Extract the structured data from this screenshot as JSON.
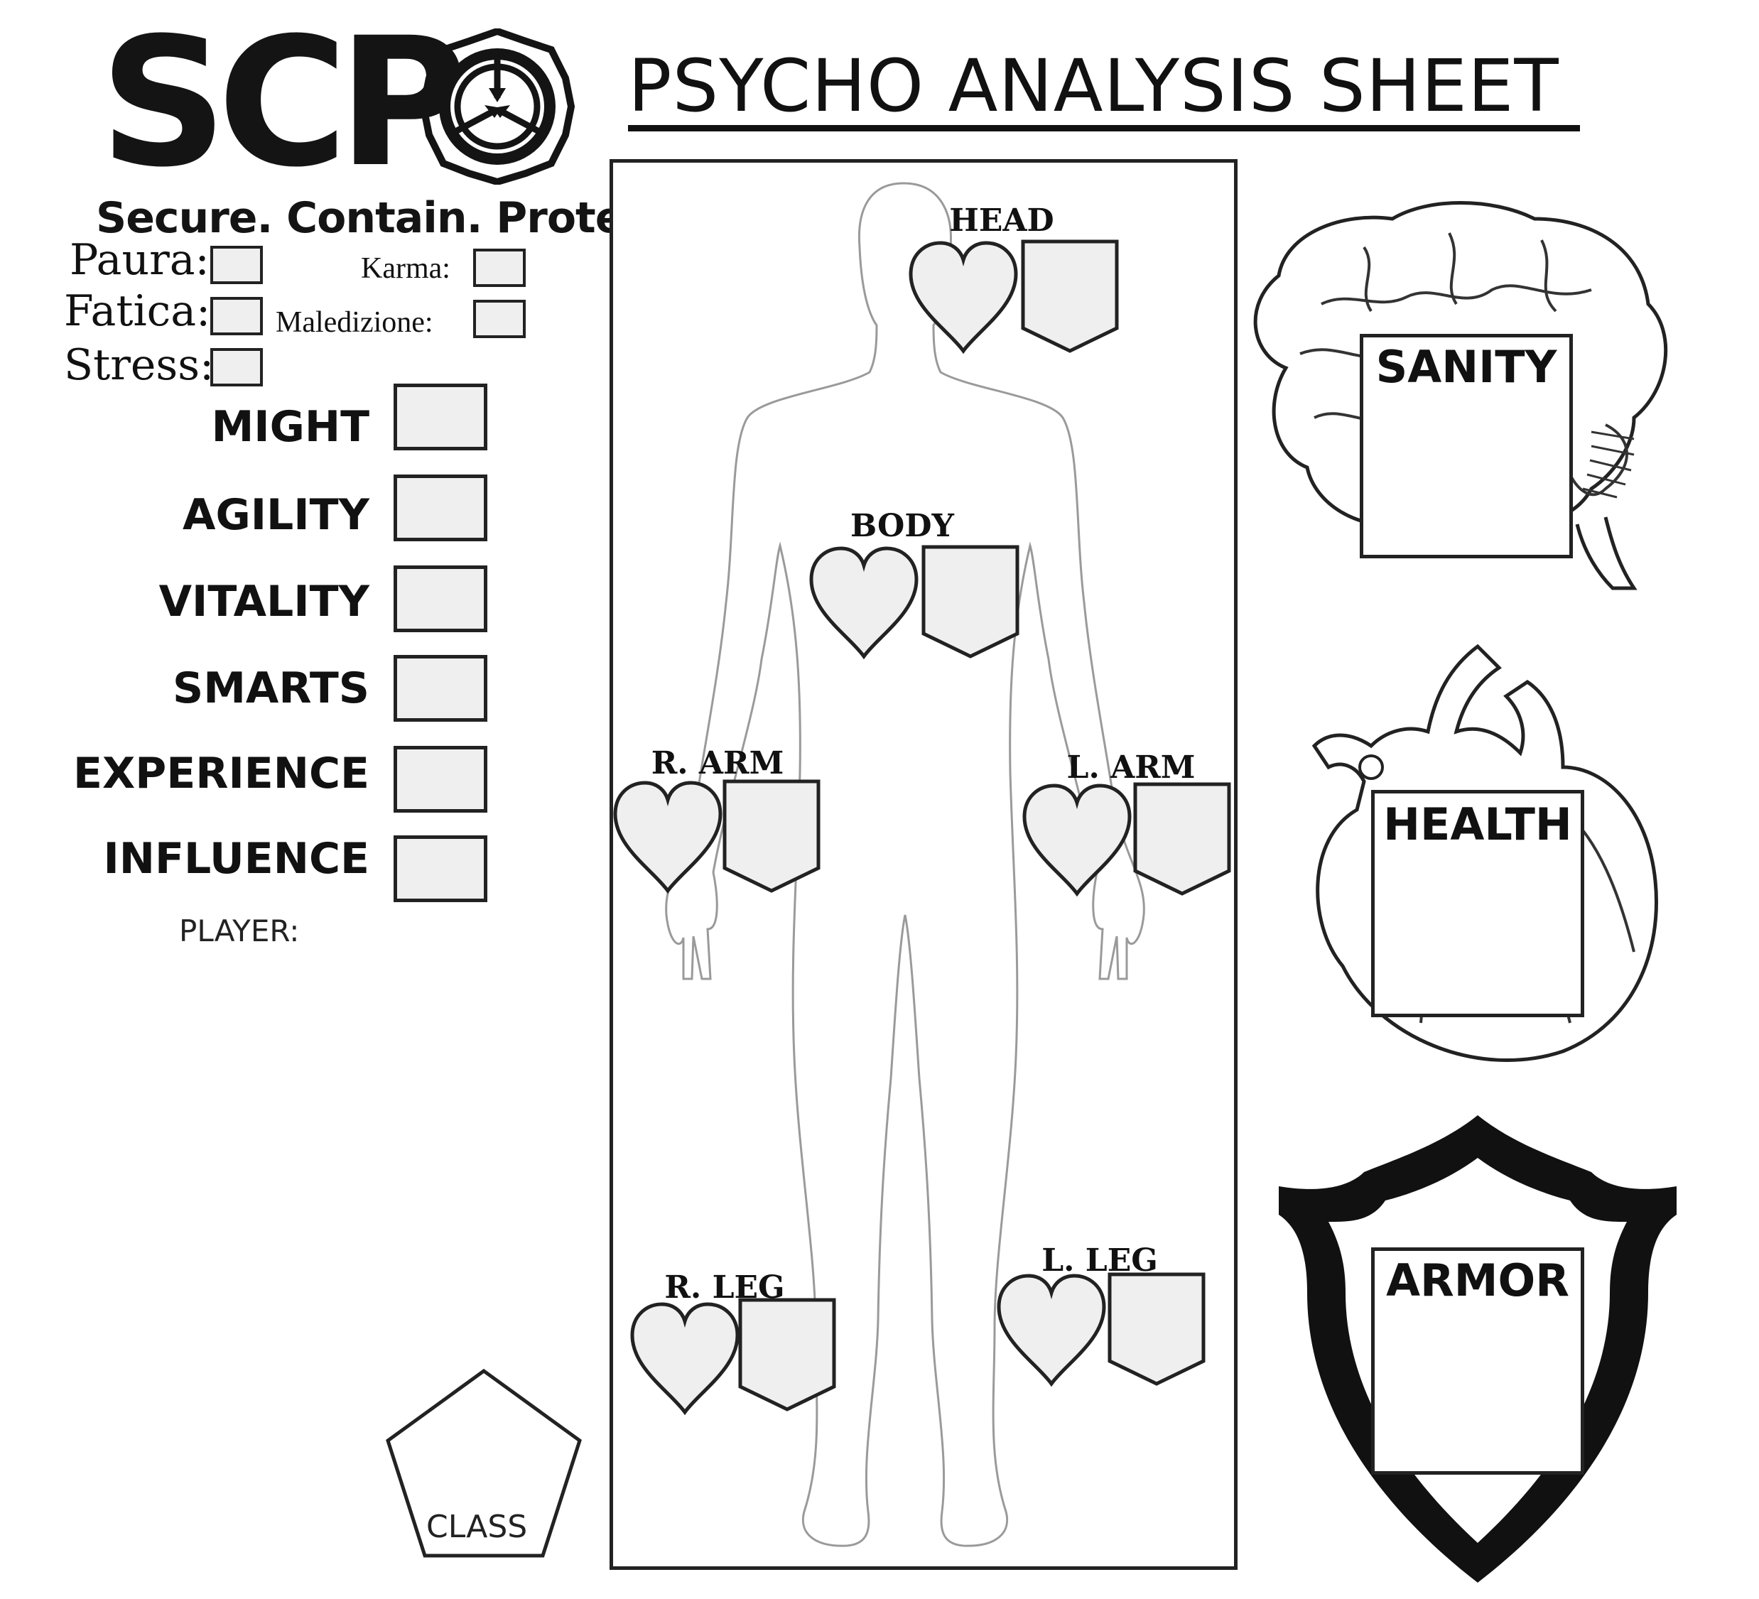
{
  "logo": {
    "wordmark": "SCP",
    "tagline": "Secure. Contain. Protect",
    "seal_icon": "scp-foundation-seal-icon"
  },
  "sheet": {
    "title": "PSYCHO ANALYSIS SHEET"
  },
  "status": {
    "paura": "Paura:",
    "fatica": "Fatica:",
    "stress": "Stress:",
    "karma": "Karma:",
    "maledizione": "Maledizione:"
  },
  "stats": {
    "items": [
      {
        "label": "MIGHT"
      },
      {
        "label": "AGILITY"
      },
      {
        "label": "VITALITY"
      },
      {
        "label": "SMARTS"
      },
      {
        "label": "EXPERIENCE"
      },
      {
        "label": "INFLUENCE"
      }
    ],
    "player_label": "PLAYER:"
  },
  "body_parts": {
    "head": "HEAD",
    "body": "BODY",
    "r_arm": "R. ARM",
    "l_arm": "L. ARM",
    "r_leg": "R. LEG",
    "l_leg": "L. LEG",
    "heart_icon": "heart-icon",
    "shield_icon": "armor-shield-icon"
  },
  "panels": {
    "sanity": "SANITY",
    "health": "HEALTH",
    "armor": "ARMOR",
    "class": "CLASS",
    "sanity_icon": "brain-icon",
    "health_icon": "anatomical-heart-icon",
    "armor_icon": "shield-icon"
  },
  "colors": {
    "ink": "#111111",
    "box_fill": "#efefef",
    "paper": "#ffffff"
  }
}
